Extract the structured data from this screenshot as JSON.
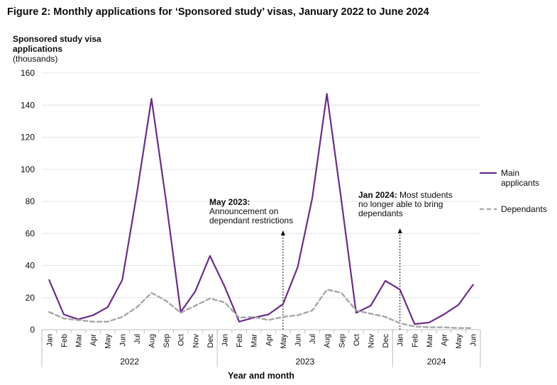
{
  "figure_title": "Figure 2: Monthly applications for ‘Sponsored study’ visas, January 2022 to June 2024",
  "y_axis_title": "Sponsored study visa applications",
  "y_axis_unit": "(thousands)",
  "chart_data": {
    "type": "line",
    "xlabel": "Year and month",
    "ylim": [
      0,
      160
    ],
    "yticks": [
      0,
      20,
      40,
      60,
      80,
      100,
      120,
      140,
      160
    ],
    "grid": true,
    "legend_placement": "right",
    "months": [
      "Jan",
      "Feb",
      "Mar",
      "Apr",
      "May",
      "Jun",
      "Jul",
      "Aug",
      "Sep",
      "Oct",
      "Nov",
      "Dec",
      "Jan",
      "Feb",
      "Mar",
      "Apr",
      "May",
      "Jun",
      "Jul",
      "Aug",
      "Sep",
      "Oct",
      "Nov",
      "Dec",
      "Jan",
      "Feb",
      "Mar",
      "Apr",
      "May",
      "Jun"
    ],
    "years": [
      {
        "label": "2022",
        "start": 0,
        "end": 11
      },
      {
        "label": "2023",
        "start": 12,
        "end": 23
      },
      {
        "label": "2024",
        "start": 24,
        "end": 29
      }
    ],
    "series": [
      {
        "name": "Main applicants",
        "color": "#6b2c8a",
        "dash": "solid",
        "values": [
          31,
          9.5,
          6.5,
          9,
          14,
          31,
          85,
          144,
          80,
          11,
          24,
          46,
          27,
          5,
          7.5,
          9.5,
          16,
          39,
          82,
          147,
          80,
          10.5,
          15,
          30.5,
          25,
          3.5,
          4.5,
          9.5,
          15.5,
          28
        ]
      },
      {
        "name": "Dependants",
        "color": "#a6a6a6",
        "dash": "dashed",
        "values": [
          11,
          7,
          6,
          5,
          5,
          8,
          14,
          23,
          18,
          10.5,
          15,
          19.5,
          17,
          7.5,
          8,
          6,
          8,
          9,
          12,
          25,
          23,
          12,
          10,
          8,
          4,
          2,
          1.5,
          1.5,
          1,
          1
        ]
      }
    ],
    "legend": [
      {
        "label": "Main applicants",
        "series": 0
      },
      {
        "label": "Dependants",
        "series": 1
      }
    ],
    "annotations": [
      {
        "index": 16,
        "bold": "May 2023:",
        "rest": [
          "Announcement on",
          "dependant restrictions"
        ]
      },
      {
        "index": 24,
        "bold": "Jan 2024:",
        "rest": [
          "Most students",
          "no longer able to bring",
          "dependants"
        ]
      }
    ]
  }
}
